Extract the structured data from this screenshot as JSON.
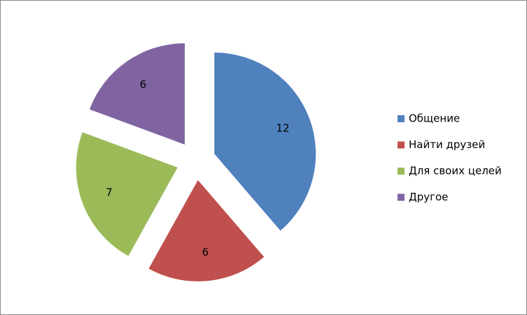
{
  "chart_data": {
    "type": "pie",
    "categories": [
      "Общение",
      "Найти друзей",
      "Для своих целей",
      "Другое"
    ],
    "values": [
      12,
      6,
      7,
      6
    ],
    "colors": [
      "#4f81bd",
      "#c0504d",
      "#9bbb59",
      "#8064a2"
    ],
    "legend": "right"
  }
}
